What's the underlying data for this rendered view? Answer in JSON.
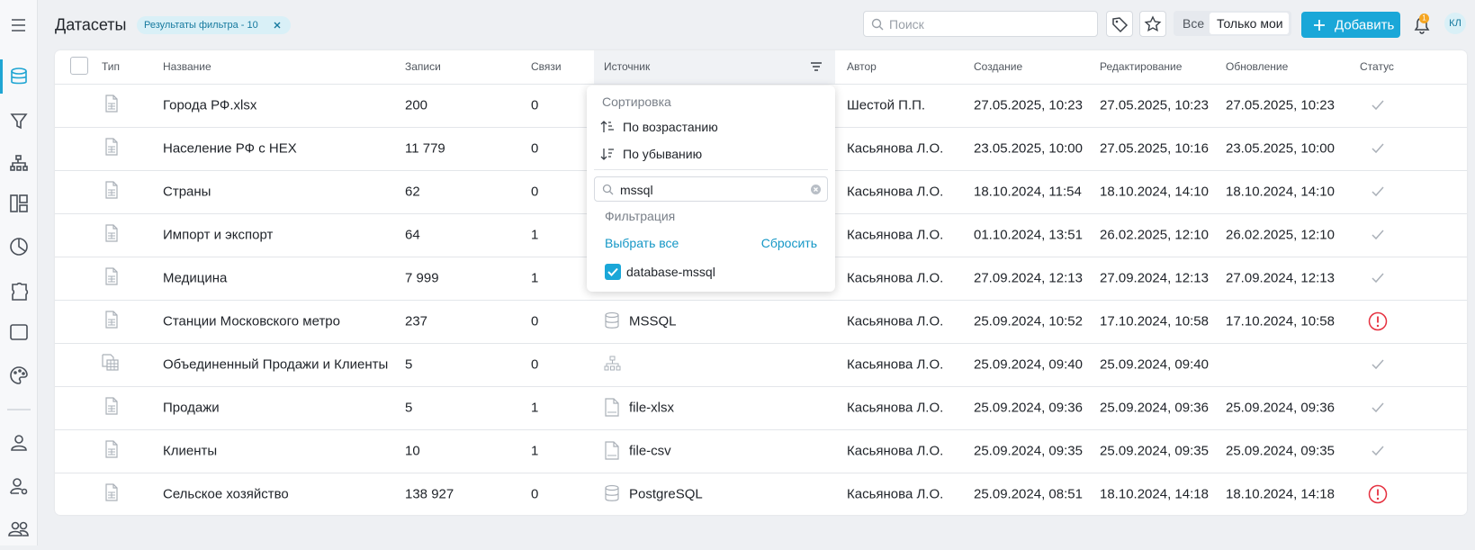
{
  "header": {
    "title": "Датасеты",
    "filter_chip": "Результаты фильтра - 10",
    "search_placeholder": "Поиск",
    "toggle": [
      "Все",
      "Только мои"
    ],
    "add_button": "Добавить",
    "notification_count": "1",
    "user_initials": "КЛ"
  },
  "table": {
    "columns": [
      "Тип",
      "Название",
      "Записи",
      "Связи",
      "Источник",
      "Автор",
      "Создание",
      "Редактирование",
      "Обновление",
      "Статус"
    ],
    "rows": [
      {
        "type": "file",
        "name": "Города РФ.xlsx",
        "records": "200",
        "links": "0",
        "author": "Шестой П.П.",
        "created": "27.05.2025, 10:23",
        "edited": "27.05.2025, 10:23",
        "updated": "27.05.2025, 10:23",
        "status": "ok"
      },
      {
        "type": "file",
        "name": "Население РФ с HEX",
        "records": "11 779",
        "links": "0",
        "author": "Касьянова Л.О.",
        "created": "23.05.2025, 10:00",
        "edited": "27.05.2025, 10:16",
        "updated": "23.05.2025, 10:00",
        "status": "ok"
      },
      {
        "type": "file",
        "name": "Страны",
        "records": "62",
        "links": "0",
        "author": "Касьянова Л.О.",
        "created": "18.10.2024, 11:54",
        "edited": "18.10.2024, 14:10",
        "updated": "18.10.2024, 14:10",
        "status": "ok"
      },
      {
        "type": "file",
        "name": "Импорт и экспорт",
        "records": "64",
        "links": "1",
        "author": "Касьянова Л.О.",
        "created": "01.10.2024, 13:51",
        "edited": "26.02.2025, 12:10",
        "updated": "26.02.2025, 12:10",
        "status": "ok"
      },
      {
        "type": "file",
        "name": "Медицина",
        "records": "7 999",
        "links": "1",
        "author": "Касьянова Л.О.",
        "created": "27.09.2024, 12:13",
        "edited": "27.09.2024, 12:13",
        "updated": "27.09.2024, 12:13",
        "status": "ok"
      },
      {
        "type": "file",
        "name": "Станции Московского метро",
        "records": "237",
        "links": "0",
        "source_icon": "database",
        "source": "MSSQL",
        "author": "Касьянова Л.О.",
        "created": "25.09.2024, 10:52",
        "edited": "17.10.2024, 10:58",
        "updated": "17.10.2024, 10:58",
        "status": "error"
      },
      {
        "type": "merged",
        "name": "Объединенный Продажи и Клиенты",
        "records": "5",
        "links": "0",
        "source_icon": "hierarchy",
        "author": "Касьянова Л.О.",
        "created": "25.09.2024, 09:40",
        "edited": "25.09.2024, 09:40",
        "status": "ok"
      },
      {
        "type": "file",
        "name": "Продажи",
        "records": "5",
        "links": "1",
        "source_icon": "file",
        "source": "file-xlsx",
        "author": "Касьянова Л.О.",
        "created": "25.09.2024, 09:36",
        "edited": "25.09.2024, 09:36",
        "updated": "25.09.2024, 09:36",
        "status": "ok"
      },
      {
        "type": "file",
        "name": "Клиенты",
        "records": "10",
        "links": "1",
        "source_icon": "file",
        "source": "file-csv",
        "author": "Касьянова Л.О.",
        "created": "25.09.2024, 09:35",
        "edited": "25.09.2024, 09:35",
        "updated": "25.09.2024, 09:35",
        "status": "ok"
      },
      {
        "type": "file",
        "name": "Сельское хозяйство",
        "records": "138 927",
        "links": "0",
        "source_icon": "database",
        "source": "PostgreSQL",
        "author": "Касьянова Л.О.",
        "created": "25.09.2024, 08:51",
        "edited": "18.10.2024, 14:18",
        "updated": "18.10.2024, 14:18",
        "status": "error"
      }
    ]
  },
  "dropdown": {
    "sort_title": "Сортировка",
    "sort_asc": "По возрастанию",
    "sort_desc": "По убыванию",
    "search_value": "mssql",
    "filter_title": "Фильтрация",
    "select_all": "Выбрать все",
    "reset": "Сбросить",
    "options": [
      "database-mssql"
    ]
  }
}
